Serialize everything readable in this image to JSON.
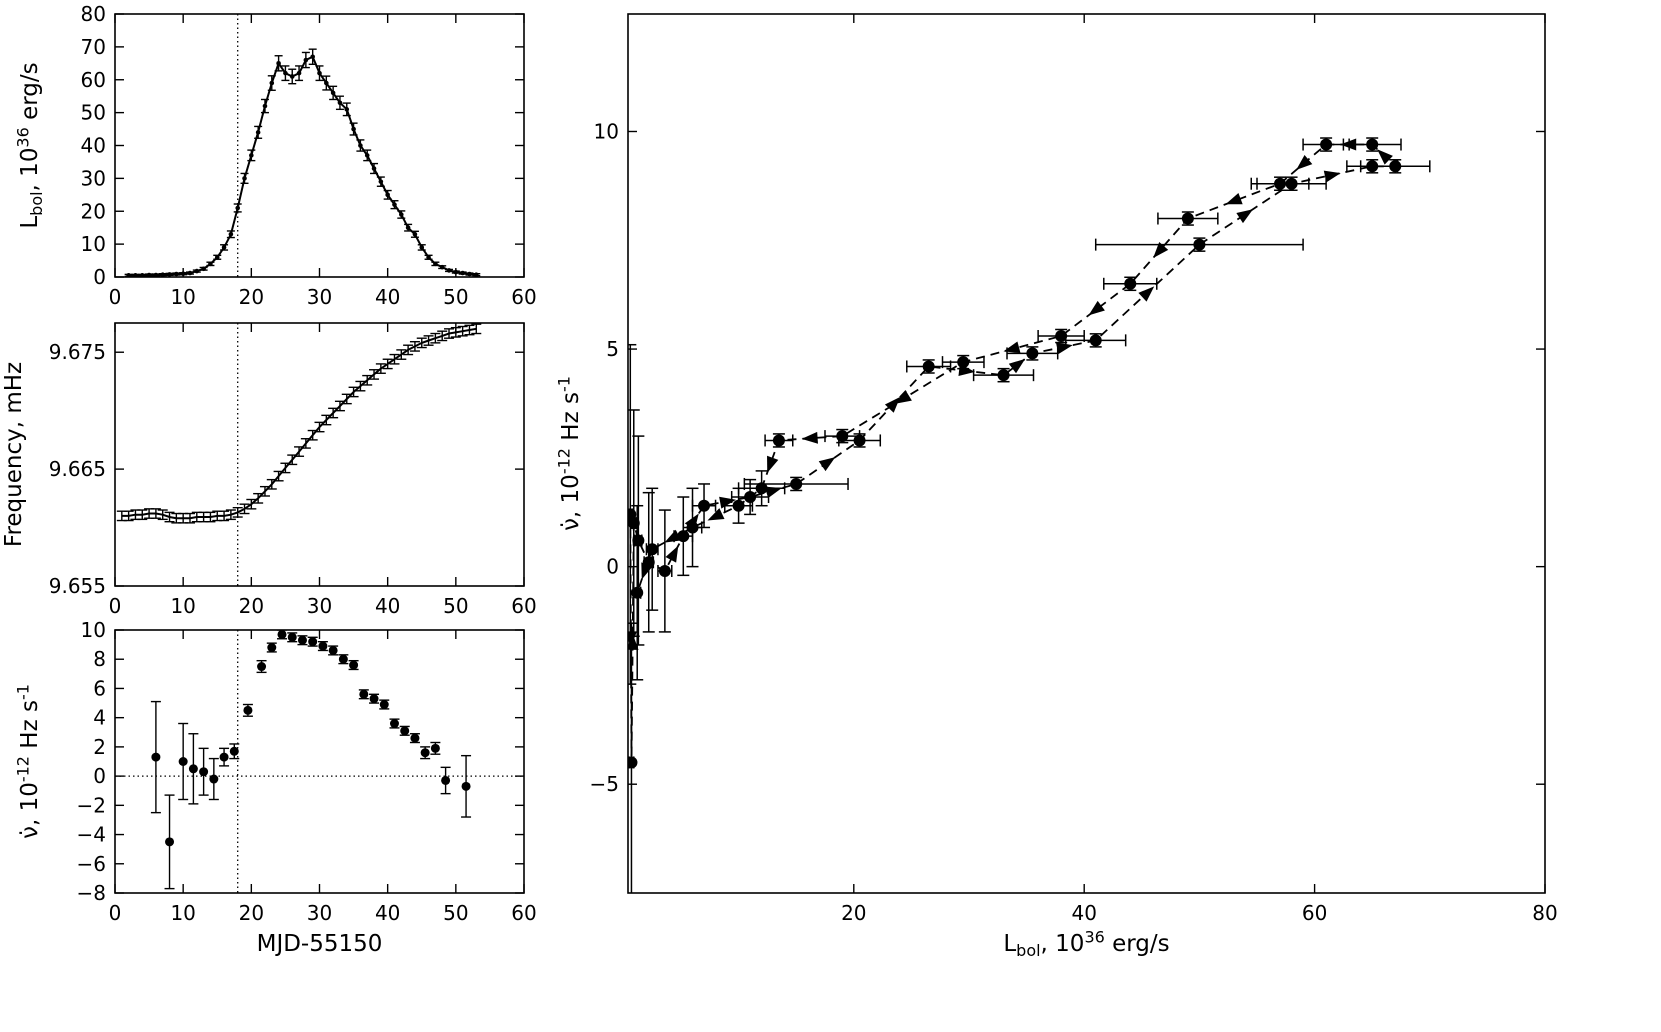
{
  "figure": {
    "bg": "#ffffff",
    "fg": "#000000"
  },
  "chart_data": [
    {
      "id": "lightcurve",
      "type": "line",
      "title": "",
      "xlabel": "",
      "ylabel": "L_{bol}, 10^{36} erg/s",
      "xlim": [
        0,
        60
      ],
      "ylim": [
        0,
        80
      ],
      "xticks": [
        0,
        10,
        20,
        30,
        40,
        50,
        60
      ],
      "xticklabels": [
        "0",
        "10",
        "20",
        "30",
        "40",
        "50",
        "60"
      ],
      "yticks": [
        0,
        10,
        20,
        30,
        40,
        50,
        60,
        70,
        80
      ],
      "yticklabels": [
        "0",
        "10",
        "20",
        "30",
        "40",
        "50",
        "60",
        "70",
        "80"
      ],
      "vline": 18,
      "x": [
        2,
        3,
        4,
        5,
        6,
        7,
        8,
        9,
        10,
        11,
        12,
        13,
        14,
        15,
        16,
        17,
        18,
        19,
        20,
        21,
        22,
        23,
        24,
        25,
        26,
        27,
        28,
        29,
        30,
        31,
        32,
        33,
        34,
        35,
        36,
        37,
        38,
        39,
        40,
        41,
        42,
        43,
        44,
        45,
        46,
        47,
        48,
        49,
        50,
        51,
        52,
        53
      ],
      "y": [
        0.5,
        0.5,
        0.5,
        0.6,
        0.6,
        0.7,
        0.8,
        0.9,
        1.0,
        1.2,
        1.8,
        2.5,
        4,
        6,
        9,
        13,
        21,
        30,
        37,
        44,
        52,
        59,
        65,
        62,
        61,
        62,
        66,
        67,
        62,
        59,
        56,
        53,
        51,
        45,
        40,
        37,
        33,
        29,
        25,
        22,
        19,
        15,
        13,
        9,
        6,
        4,
        3,
        2,
        1.5,
        1.2,
        0.9,
        0.7
      ],
      "yerr": [
        0.3,
        0.3,
        0.3,
        0.3,
        0.3,
        0.3,
        0.3,
        0.3,
        0.3,
        0.3,
        0.3,
        0.4,
        0.5,
        0.6,
        0.8,
        1.0,
        1.2,
        1.5,
        1.6,
        1.8,
        2.0,
        2.2,
        2.3,
        2.2,
        2.2,
        2.2,
        2.3,
        2.3,
        2.2,
        2.1,
        2.0,
        2.0,
        1.9,
        1.8,
        1.7,
        1.6,
        1.5,
        1.4,
        1.3,
        1.2,
        1.1,
        1.0,
        0.9,
        0.8,
        0.6,
        0.5,
        0.4,
        0.3,
        0.3,
        0.3,
        0.3,
        0.3
      ]
    },
    {
      "id": "frequency",
      "type": "line",
      "title": "",
      "xlabel": "",
      "ylabel": "Frequency, mHz",
      "xlim": [
        0,
        60
      ],
      "ylim": [
        9.655,
        9.6775
      ],
      "xticks": [
        0,
        10,
        20,
        30,
        40,
        50,
        60
      ],
      "xticklabels": [
        "0",
        "10",
        "20",
        "30",
        "40",
        "50",
        "60"
      ],
      "yticks": [
        9.655,
        9.665,
        9.675
      ],
      "yticklabels": [
        "9.655",
        "9.665",
        "9.675"
      ],
      "vline": 18,
      "x": [
        1,
        2,
        3,
        4,
        5,
        6,
        7,
        8,
        9,
        10,
        11,
        12,
        13,
        14,
        15,
        16,
        17,
        18,
        19,
        20,
        21,
        22,
        23,
        24,
        25,
        26,
        27,
        28,
        29,
        30,
        31,
        32,
        33,
        34,
        35,
        36,
        37,
        38,
        39,
        40,
        41,
        42,
        43,
        44,
        45,
        46,
        47,
        48,
        49,
        50,
        51,
        52,
        53
      ],
      "y": [
        9.661,
        9.661,
        9.6611,
        9.6611,
        9.6612,
        9.6612,
        9.6611,
        9.6609,
        9.6608,
        9.6608,
        9.6608,
        9.6609,
        9.6609,
        9.6609,
        9.661,
        9.661,
        9.6611,
        9.6613,
        9.6616,
        9.662,
        9.6625,
        9.6631,
        9.6637,
        9.6644,
        9.6651,
        9.6658,
        9.6665,
        9.6672,
        9.6679,
        9.6686,
        9.6692,
        9.6698,
        9.6704,
        9.671,
        9.6716,
        9.6721,
        9.6726,
        9.6731,
        9.6736,
        9.674,
        9.6744,
        9.6748,
        9.6752,
        9.6755,
        9.6758,
        9.676,
        9.6762,
        9.6764,
        9.6766,
        9.6767,
        9.6768,
        9.6769,
        9.677
      ],
      "yerr": 0.0004
    },
    {
      "id": "nudot-time",
      "type": "scatter",
      "title": "",
      "xlabel": "MJD-55150",
      "ylabel": "ν̇, 10^{-12} Hz s^{-1}",
      "xlim": [
        0,
        60
      ],
      "ylim": [
        -8,
        10
      ],
      "xticks": [
        0,
        10,
        20,
        30,
        40,
        50,
        60
      ],
      "xticklabels": [
        "0",
        "10",
        "20",
        "30",
        "40",
        "50",
        "60"
      ],
      "yticks": [
        -8,
        -6,
        -4,
        -2,
        0,
        2,
        4,
        6,
        8,
        10
      ],
      "yticklabels": [
        "−8",
        "−6",
        "−4",
        "−2",
        "0",
        "2",
        "4",
        "6",
        "8",
        "10"
      ],
      "vline": 18,
      "hline": 0,
      "x": [
        6,
        8,
        10,
        11.5,
        13,
        14.5,
        16,
        17.5,
        19.5,
        21.5,
        23,
        24.5,
        26,
        27.5,
        29,
        30.5,
        32,
        33.5,
        35,
        36.5,
        38,
        39.5,
        41,
        42.5,
        44,
        45.5,
        47,
        48.5,
        51.5
      ],
      "y": [
        1.3,
        -4.5,
        1.0,
        0.5,
        0.3,
        -0.2,
        1.3,
        1.7,
        4.5,
        7.5,
        8.8,
        9.7,
        9.5,
        9.3,
        9.2,
        8.9,
        8.6,
        8.0,
        7.6,
        5.6,
        5.3,
        4.9,
        3.6,
        3.1,
        2.6,
        1.6,
        1.9,
        -0.3,
        -0.7
      ],
      "yerr": [
        3.8,
        3.2,
        2.6,
        2.4,
        1.6,
        1.4,
        0.6,
        0.5,
        0.4,
        0.4,
        0.3,
        0.3,
        0.3,
        0.3,
        0.3,
        0.3,
        0.3,
        0.3,
        0.3,
        0.3,
        0.3,
        0.3,
        0.3,
        0.3,
        0.3,
        0.4,
        0.4,
        0.9,
        2.1
      ]
    },
    {
      "id": "nudot-lum",
      "type": "track",
      "title": "",
      "xlabel": "L_{bol}, 10^{36} erg/s",
      "ylabel": "ν̇, 10^{-12} Hz s^{-1}",
      "xlim": [
        0.4,
        80
      ],
      "ylim": [
        -7.5,
        12.7
      ],
      "xticks": [
        20,
        40,
        60,
        80
      ],
      "xticklabels": [
        "20",
        "40",
        "60",
        "80"
      ],
      "yticks": [
        -5,
        0,
        5,
        10
      ],
      "yticklabels": [
        "−5",
        "0",
        "5",
        "10"
      ],
      "x": [
        0.6,
        0.7,
        0.9,
        1.3,
        2.2,
        3.6,
        5.2,
        7.0,
        11.0,
        15.0,
        20.5,
        26.5,
        33.0,
        35.5,
        41.0,
        50.0,
        58.0,
        65.0,
        67.0,
        65.0,
        61.0,
        57.0,
        49.0,
        44.0,
        38.0,
        29.5,
        19.0,
        13.5,
        12.0,
        10.0,
        6.0,
        2.5,
        1.2
      ],
      "y": [
        1.2,
        -4.5,
        1.0,
        0.6,
        0.1,
        -0.1,
        0.7,
        1.4,
        1.6,
        1.9,
        2.9,
        4.6,
        4.4,
        4.9,
        5.2,
        7.4,
        8.8,
        9.2,
        9.2,
        9.7,
        9.7,
        8.8,
        8.0,
        6.5,
        5.3,
        4.7,
        3.0,
        2.9,
        1.8,
        1.4,
        0.9,
        0.4,
        -0.6
      ],
      "xerr": [
        0.2,
        0.2,
        0.2,
        0.3,
        0.4,
        0.6,
        0.8,
        1.0,
        1.6,
        4.5,
        1.8,
        1.9,
        2.6,
        2.2,
        2.6,
        9.0,
        3.0,
        2.2,
        3.0,
        2.5,
        2.0,
        2.5,
        2.6,
        2.3,
        2.0,
        1.8,
        1.5,
        1.2,
        2.0,
        1.2,
        0.8,
        0.5,
        0.3
      ],
      "yerr": [
        3.9,
        3.2,
        2.6,
        2.4,
        1.6,
        1.4,
        0.9,
        0.5,
        0.4,
        0.15,
        0.15,
        0.15,
        0.15,
        0.15,
        0.15,
        0.15,
        0.15,
        0.15,
        0.15,
        0.15,
        0.15,
        0.15,
        0.15,
        0.15,
        0.15,
        0.15,
        0.15,
        0.15,
        0.4,
        0.4,
        0.9,
        1.4,
        2.0
      ]
    }
  ]
}
